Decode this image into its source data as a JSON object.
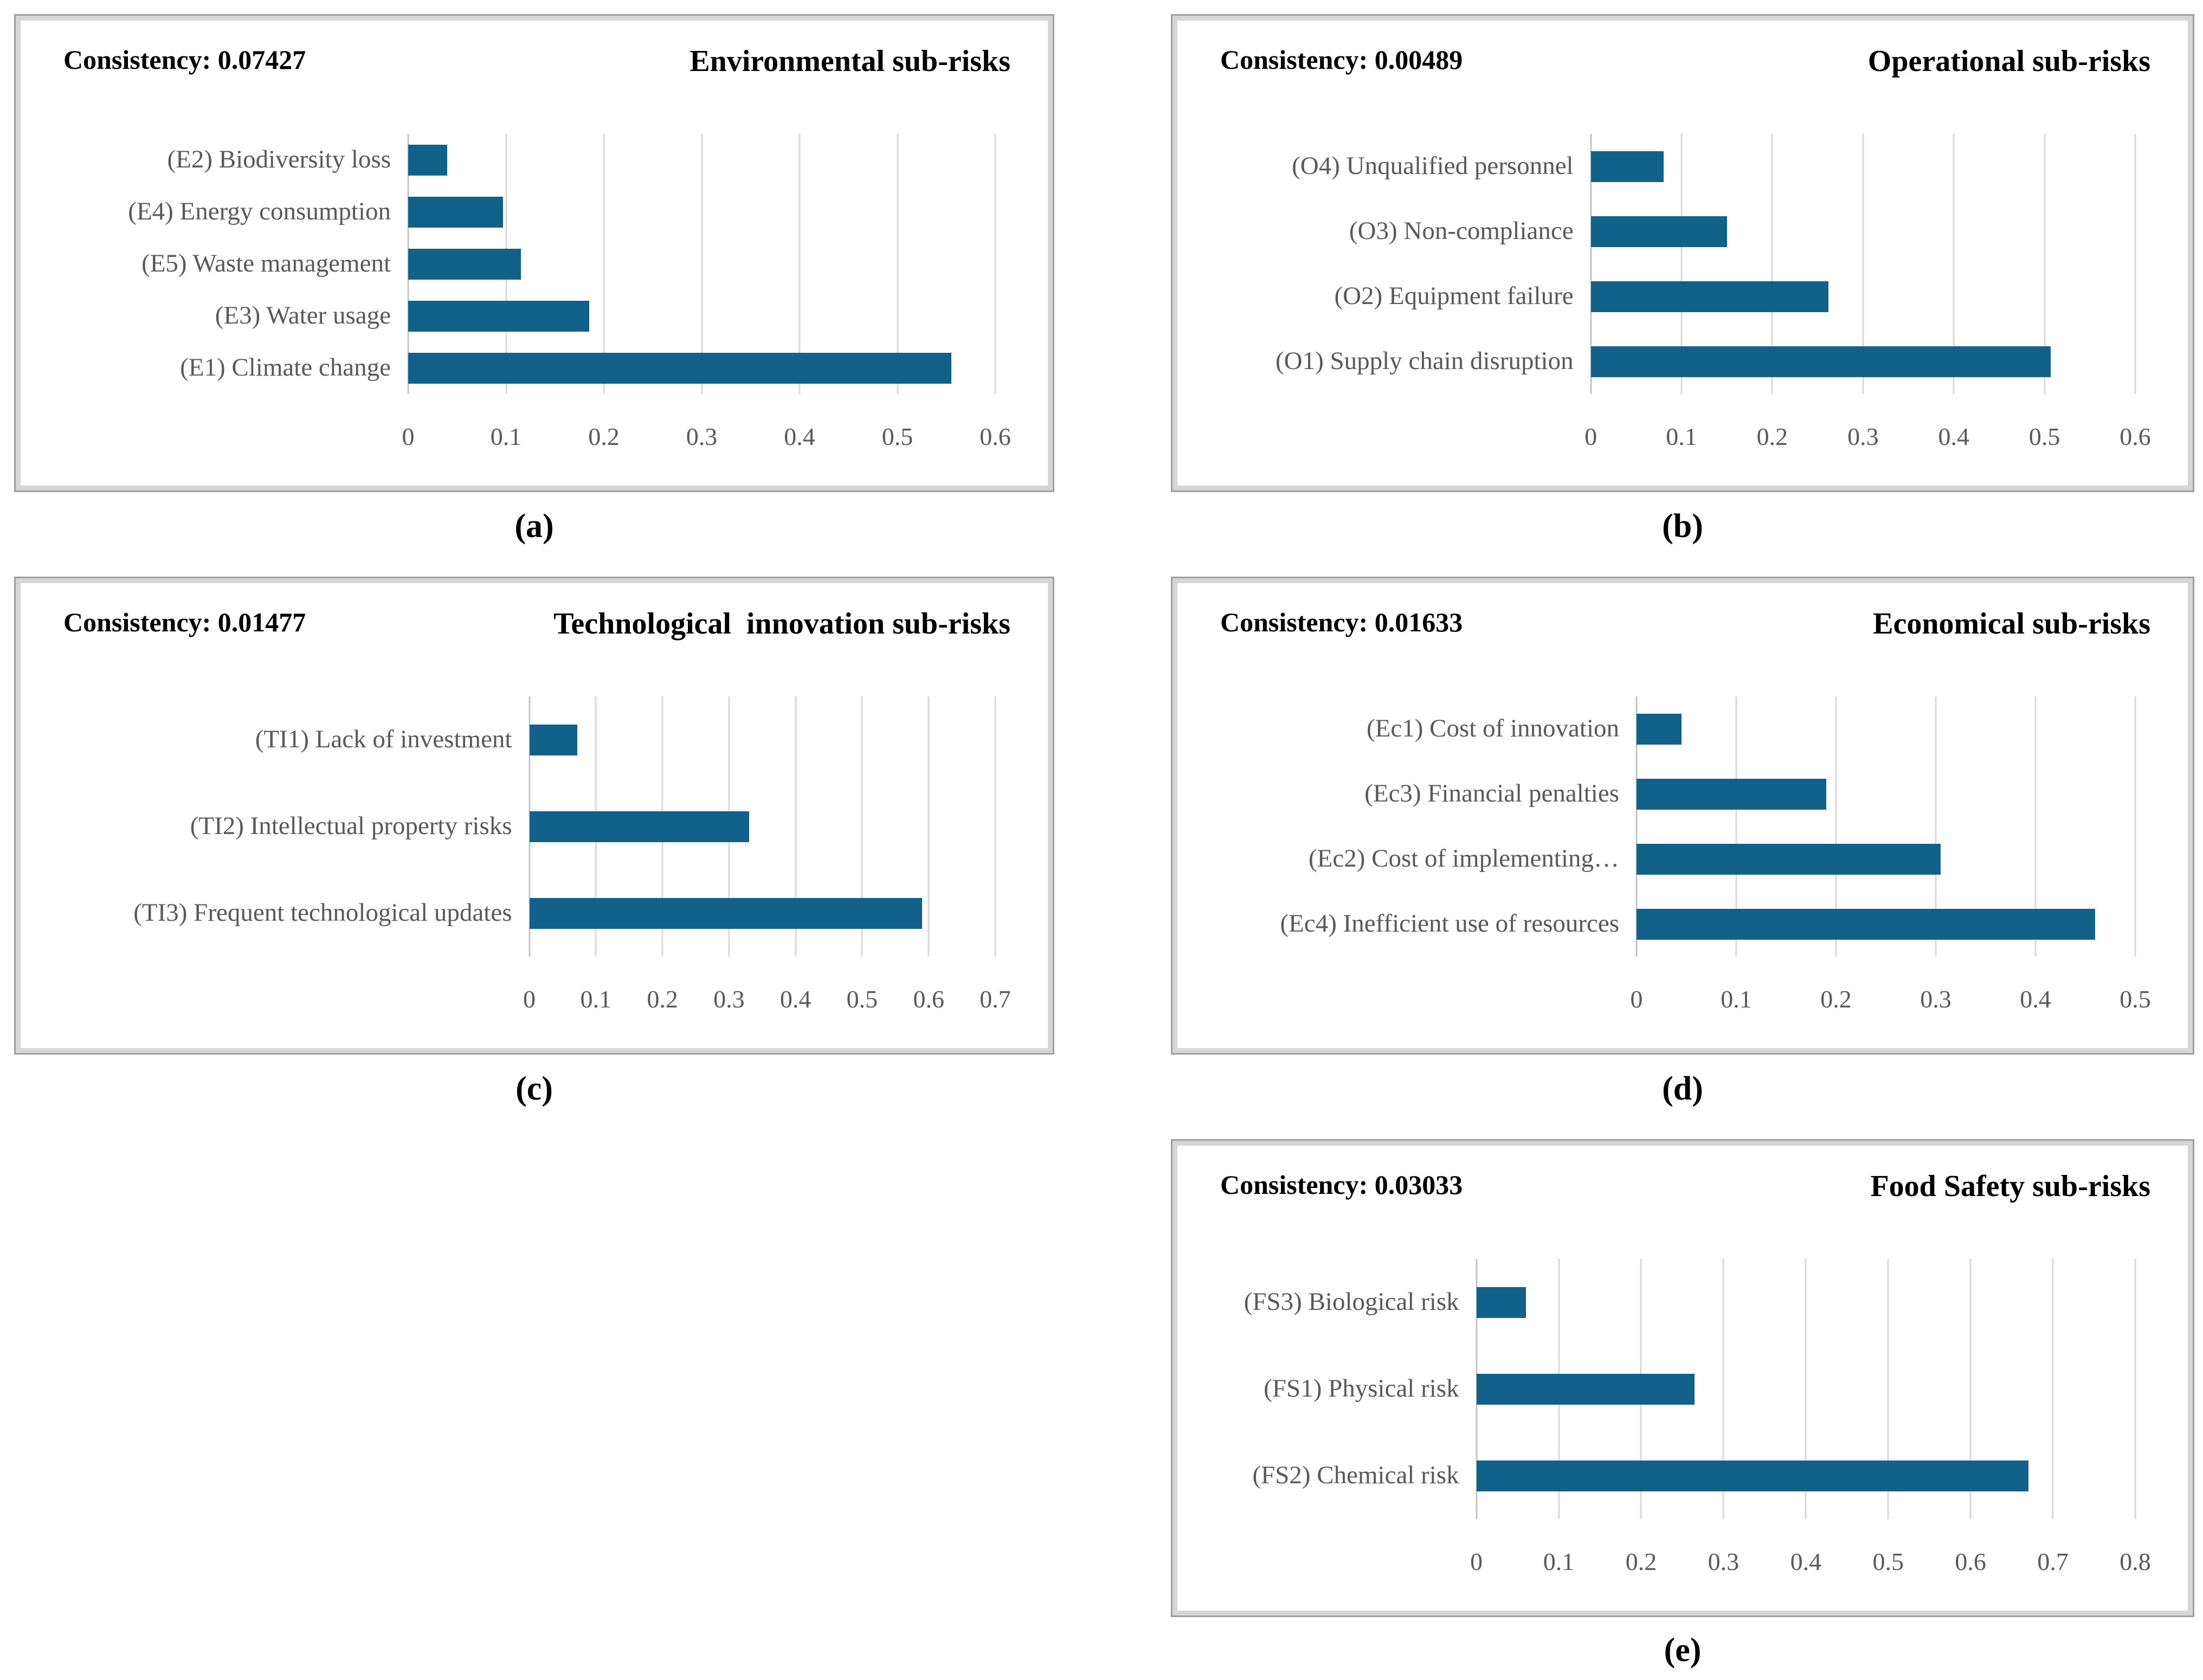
{
  "colors": {
    "bar": "#12618a",
    "gridline": "#d9d9d9",
    "axis_text": "#595959",
    "category_text": "#595959",
    "title_text": "#000000",
    "panel_border": "#9f9f9f",
    "panel_border_inner": "#d6d6d6"
  },
  "chart_data": [
    {
      "id": "a",
      "panel_label": "(a)",
      "consistency": "Consistency: 0.07427",
      "title": "Environmental sub-risks",
      "type": "bar",
      "orientation": "horizontal",
      "categories": [
        "(E2) Biodiversity loss",
        "(E4) Energy consumption",
        "(E5) Waste management",
        "(E3) Water usage",
        "(E1) Climate change"
      ],
      "values": [
        0.04,
        0.097,
        0.115,
        0.185,
        0.555
      ],
      "xlim": [
        0,
        0.6
      ],
      "xticks": [
        "0",
        "0.1",
        "0.2",
        "0.3",
        "0.4",
        "0.5",
        "0.6"
      ],
      "grid": true,
      "label_gutter_pct": 37
    },
    {
      "id": "b",
      "panel_label": "(b)",
      "consistency": "Consistency: 0.00489",
      "title": "Operational sub-risks",
      "type": "bar",
      "orientation": "horizontal",
      "categories": [
        "(O4) Unqualified personnel",
        "(O3) Non-compliance",
        "(O2) Equipment failure",
        "(O1) Supply chain disruption"
      ],
      "values": [
        0.08,
        0.15,
        0.262,
        0.507
      ],
      "xlim": [
        0,
        0.6
      ],
      "xticks": [
        "0",
        "0.1",
        "0.2",
        "0.3",
        "0.4",
        "0.5",
        "0.6"
      ],
      "grid": true,
      "label_gutter_pct": 40.5
    },
    {
      "id": "c",
      "panel_label": "(c)",
      "consistency": "Consistency: 0.01477",
      "title": "Technological  innovation sub-risks",
      "type": "bar",
      "orientation": "horizontal",
      "categories": [
        "(TI1) Lack of investment",
        "(TI2) Intellectual property risks",
        "(TI3) Frequent technological updates"
      ],
      "values": [
        0.072,
        0.33,
        0.59
      ],
      "xlim": [
        0,
        0.7
      ],
      "xticks": [
        "0",
        "0.1",
        "0.2",
        "0.3",
        "0.4",
        "0.5",
        "0.6",
        "0.7"
      ],
      "grid": true,
      "label_gutter_pct": 50
    },
    {
      "id": "d",
      "panel_label": "(d)",
      "consistency": "Consistency: 0.01633",
      "title": "Economical sub-risks",
      "type": "bar",
      "orientation": "horizontal",
      "categories": [
        "(Ec1) Cost of innovation",
        "(Ec3) Financial penalties",
        "(Ec2) Cost of implementing…",
        "(Ec4) Inefficient use of resources"
      ],
      "values": [
        0.045,
        0.19,
        0.305,
        0.46
      ],
      "xlim": [
        0,
        0.5
      ],
      "xticks": [
        "0",
        "0.1",
        "0.2",
        "0.3",
        "0.4",
        "0.5"
      ],
      "grid": true,
      "label_gutter_pct": 45.5
    },
    {
      "id": "e",
      "panel_label": "(e)",
      "consistency": "Consistency: 0.03033",
      "title": "Food Safety sub-risks",
      "type": "bar",
      "orientation": "horizontal",
      "categories": [
        "(FS3) Biological risk",
        "(FS1) Physical risk",
        "(FS2) Chemical risk"
      ],
      "values": [
        0.06,
        0.265,
        0.67
      ],
      "xlim": [
        0,
        0.8
      ],
      "xticks": [
        "0",
        "0.1",
        "0.2",
        "0.3",
        "0.4",
        "0.5",
        "0.6",
        "0.7",
        "0.8"
      ],
      "grid": true,
      "label_gutter_pct": 28
    }
  ]
}
